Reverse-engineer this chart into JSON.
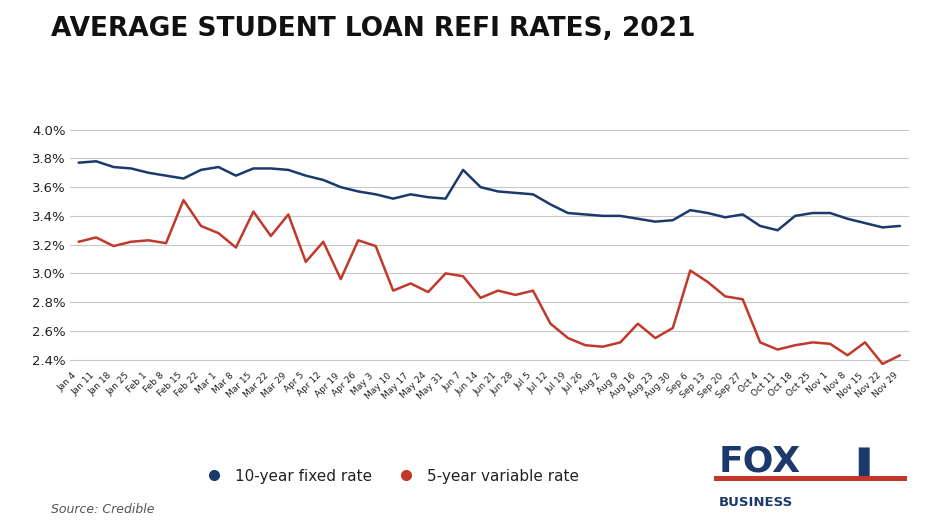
{
  "title": "AVERAGE STUDENT LOAN REFI RATES, 2021",
  "source": "Source: Credible",
  "legend": [
    "10-year fixed rate",
    "5-year variable rate"
  ],
  "line_colors": [
    "#1b3a6b",
    "#c0392b"
  ],
  "ylim": [
    2.35,
    4.1
  ],
  "yticks": [
    2.4,
    2.6,
    2.8,
    3.0,
    3.2,
    3.4,
    3.6,
    3.8,
    4.0
  ],
  "ytick_labels": [
    "2.4%",
    "2.6%",
    "2.8%",
    "3.0%",
    "3.2%",
    "3.4%",
    "3.6%",
    "3.8%",
    "4.0%"
  ],
  "x_labels": [
    "Jan 4",
    "Jan 11",
    "Jan 18",
    "Jan 25",
    "Feb 1",
    "Feb 8",
    "Feb 15",
    "Feb 22",
    "Mar 1",
    "Mar 8",
    "Mar 15",
    "Mar 22",
    "Mar 29",
    "Apr 5",
    "Apr 12",
    "Apr 19",
    "Apr 26",
    "May 3",
    "May 10",
    "May 17",
    "May 24",
    "May 31",
    "Jun 7",
    "Jun 14",
    "Jun 21",
    "Jun 28",
    "Jul 5",
    "Jul 12",
    "Jul 19",
    "Jul 26",
    "Aug 2",
    "Aug 9",
    "Aug 16",
    "Aug 23",
    "Aug 30",
    "Sep 6",
    "Sep 13",
    "Sep 20",
    "Sep 27",
    "Oct 4",
    "Oct 11",
    "Oct 18",
    "Oct 25",
    "Nov 1",
    "Nov 8",
    "Nov 15",
    "Nov 22",
    "Nov 29"
  ],
  "fixed_rate": [
    3.77,
    3.78,
    3.74,
    3.73,
    3.7,
    3.68,
    3.66,
    3.72,
    3.74,
    3.68,
    3.73,
    3.73,
    3.72,
    3.68,
    3.65,
    3.6,
    3.57,
    3.55,
    3.52,
    3.55,
    3.53,
    3.52,
    3.72,
    3.6,
    3.57,
    3.56,
    3.55,
    3.48,
    3.42,
    3.41,
    3.4,
    3.4,
    3.38,
    3.36,
    3.37,
    3.44,
    3.42,
    3.39,
    3.41,
    3.33,
    3.3,
    3.4,
    3.42,
    3.42,
    3.38,
    3.35,
    3.32,
    3.33
  ],
  "variable_rate": [
    3.22,
    3.25,
    3.19,
    3.22,
    3.23,
    3.21,
    3.51,
    3.33,
    3.28,
    3.18,
    3.43,
    3.26,
    3.41,
    3.08,
    3.22,
    2.96,
    3.23,
    3.19,
    2.88,
    2.93,
    2.87,
    3.0,
    2.98,
    2.83,
    2.88,
    2.85,
    2.88,
    2.65,
    2.55,
    2.5,
    2.49,
    2.52,
    2.65,
    2.55,
    2.62,
    3.02,
    2.94,
    2.84,
    2.82,
    2.52,
    2.47,
    2.5,
    2.52,
    2.51,
    2.43,
    2.52,
    2.37,
    2.43
  ],
  "bg_color": "#ffffff",
  "grid_color": "#c8c8c8",
  "title_fontsize": 19,
  "tick_fontsize": 9.5,
  "legend_fontsize": 11
}
